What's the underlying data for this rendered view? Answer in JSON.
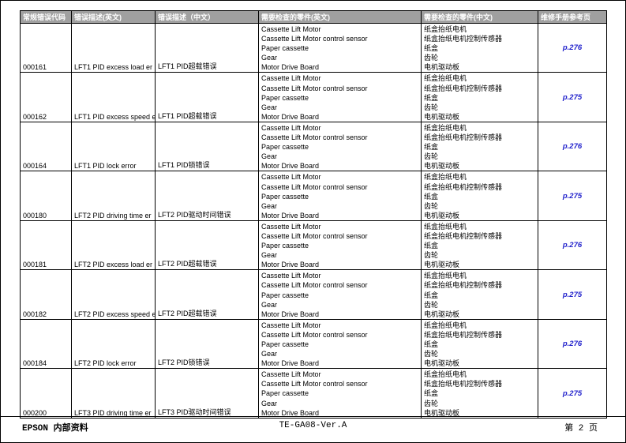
{
  "table": {
    "headers": [
      {
        "key": "code",
        "label": "常规错误代码"
      },
      {
        "key": "desc-en",
        "label": "错误描述(英文)"
      },
      {
        "key": "desc-cn",
        "label": "错误描述（中文）"
      },
      {
        "key": "parts-en",
        "label": "需要检查的零件(英文)"
      },
      {
        "key": "parts-cn",
        "label": "需要检查的零件(中文)"
      },
      {
        "key": "page-ref",
        "label": "维修手册参考页"
      }
    ],
    "groups": [
      {
        "code": "000161",
        "desc_en": "LFT1 PID excess load er",
        "desc_cn": "LFT1 PID超载错误",
        "parts_en": [
          "Cassette Lift Motor",
          "Cassette Lift Motor control sensor",
          "Paper cassette",
          "Gear",
          "Motor Drive Board"
        ],
        "parts_cn": [
          "纸盒抬纸电机",
          "纸盒抬纸电机控制传感器",
          "纸盒",
          "齿轮",
          "电机驱动板"
        ],
        "page_ref": "p.276"
      },
      {
        "code": "000162",
        "desc_en": "LFT1 PID excess speed e",
        "desc_cn": "LFT1 PID超载错误",
        "parts_en": [
          "Cassette Lift Motor",
          "Cassette Lift Motor control sensor",
          "Paper cassette",
          "Gear",
          "Motor Drive Board"
        ],
        "parts_cn": [
          "纸盒抬纸电机",
          "纸盒抬纸电机控制传感器",
          "纸盒",
          "齿轮",
          "电机驱动板"
        ],
        "page_ref": "p.275"
      },
      {
        "code": "000164",
        "desc_en": "LFT1 PID lock error",
        "desc_cn": "LFT1 PID锁错误",
        "parts_en": [
          "Cassette Lift Motor",
          "Cassette Lift Motor control sensor",
          "Paper cassette",
          "Gear",
          "Motor Drive Board"
        ],
        "parts_cn": [
          "纸盒抬纸电机",
          "纸盒抬纸电机控制传感器",
          "纸盒",
          "齿轮",
          "电机驱动板"
        ],
        "page_ref": "p.276"
      },
      {
        "code": "000180",
        "desc_en": "LFT2 PID driving time er",
        "desc_cn": "LFT2 PID驱动时间错误",
        "parts_en": [
          "Cassette Lift Motor",
          "Cassette Lift Motor control sensor",
          "Paper cassette",
          "Gear",
          "Motor Drive Board"
        ],
        "parts_cn": [
          "纸盒抬纸电机",
          "纸盒抬纸电机控制传感器",
          "纸盒",
          "齿轮",
          "电机驱动板"
        ],
        "page_ref": "p.275"
      },
      {
        "code": "000181",
        "desc_en": "LFT2 PID excess load er",
        "desc_cn": "LFT2 PID超载错误",
        "parts_en": [
          "Cassette Lift Motor",
          "Cassette Lift Motor control sensor",
          "Paper cassette",
          "Gear",
          "Motor Drive Board"
        ],
        "parts_cn": [
          "纸盒抬纸电机",
          "纸盒抬纸电机控制传感器",
          "纸盒",
          "齿轮",
          "电机驱动板"
        ],
        "page_ref": "p.276"
      },
      {
        "code": "000182",
        "desc_en": "LFT2 PID excess speed e",
        "desc_cn": "LFT2 PID超载错误",
        "parts_en": [
          "Cassette Lift Motor",
          "Cassette Lift Motor control sensor",
          "Paper cassette",
          "Gear",
          "Motor Drive Board"
        ],
        "parts_cn": [
          "纸盒抬纸电机",
          "纸盒抬纸电机控制传感器",
          "纸盒",
          "齿轮",
          "电机驱动板"
        ],
        "page_ref": "p.275"
      },
      {
        "code": "000184",
        "desc_en": "LFT2 PID lock error",
        "desc_cn": "LFT2 PID锁错误",
        "parts_en": [
          "Cassette Lift Motor",
          "Cassette Lift Motor control sensor",
          "Paper cassette",
          "Gear",
          "Motor Drive Board"
        ],
        "parts_cn": [
          "纸盒抬纸电机",
          "纸盒抬纸电机控制传感器",
          "纸盒",
          "齿轮",
          "电机驱动板"
        ],
        "page_ref": "p.276"
      },
      {
        "code": "000200",
        "desc_en": "LFT3 PID driving time er",
        "desc_cn": "LFT3 PID驱动时间错误",
        "parts_en": [
          "Cassette Lift Motor",
          "Cassette Lift Motor control sensor",
          "Paper cassette",
          "Gear",
          "Motor Drive Board"
        ],
        "parts_cn": [
          "纸盒抬纸电机",
          "纸盒抬纸电机控制传感器",
          "纸盒",
          "齿轮",
          "电机驱动板"
        ],
        "page_ref": "p.275"
      }
    ]
  },
  "footer": {
    "left": "EPSON 内部资料",
    "center": "TE-GA08-Ver.A",
    "right": "第 2 页"
  },
  "colors": {
    "header_bg": "#a0a0a0",
    "header_text": "#ffffff",
    "page_ref_blue": "#2222cc",
    "border": "#000000"
  }
}
